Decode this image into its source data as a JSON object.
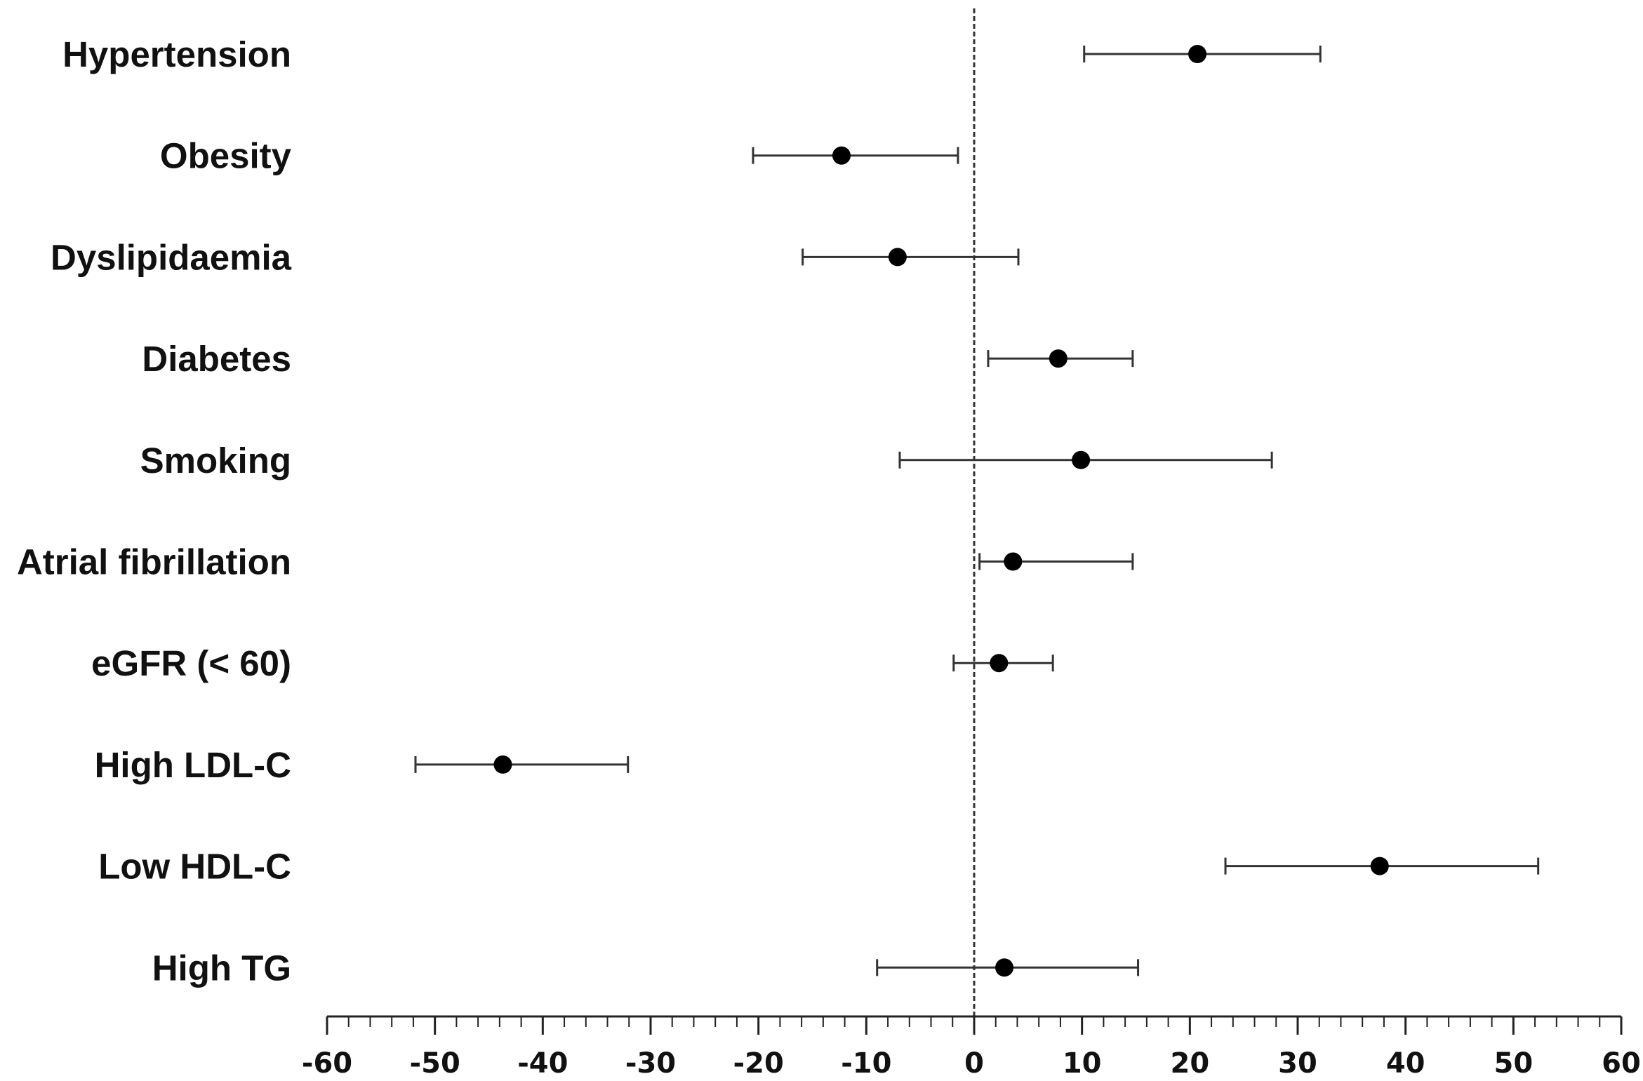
{
  "chart_data": {
    "type": "forest",
    "categories": [
      "Hypertension",
      "Obesity",
      "Dyslipidaemia",
      "Diabetes",
      "Smoking",
      "Atrial fibrillation",
      "eGFR (< 60)",
      "High LDL-C",
      "Low HDL-C",
      "High TG"
    ],
    "estimates": [
      20.7,
      -12.3,
      -7.1,
      7.8,
      9.9,
      3.6,
      2.3,
      -43.7,
      37.6,
      2.8
    ],
    "ci_lower": [
      10.2,
      -20.5,
      -15.9,
      1.3,
      -6.9,
      0.5,
      -1.9,
      -51.8,
      23.3,
      -9.0
    ],
    "ci_upper": [
      32.1,
      -1.5,
      4.1,
      14.7,
      27.6,
      14.7,
      7.3,
      -32.1,
      52.3,
      15.2
    ],
    "xlim": [
      -60,
      60
    ],
    "x_ticks": [
      -60,
      -50,
      -40,
      -30,
      -20,
      -10,
      0,
      10,
      20,
      30,
      40,
      50,
      60
    ],
    "x_tick_labels": [
      "-60",
      "-50",
      "-40",
      "-30",
      "-20",
      "-10",
      "0",
      "10",
      "20",
      "30",
      "40",
      "50",
      "60"
    ],
    "reference_line": 0,
    "title": "",
    "xlabel": "",
    "ylabel": "",
    "grid": false,
    "colors": {
      "marker": "#000000",
      "whisker": "#333333",
      "axis": "#222222",
      "reference_line": "#333333",
      "text": "#111111"
    }
  }
}
